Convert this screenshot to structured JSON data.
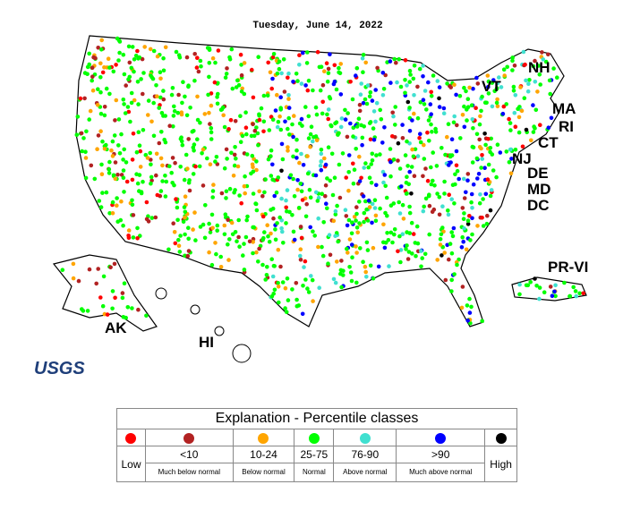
{
  "title": "Tuesday, June 14, 2022",
  "state_labels": [
    "NH",
    "VT",
    "MA",
    "RI",
    "CT",
    "NJ",
    "DE",
    "MD",
    "DC",
    "PR-VI",
    "AK",
    "HI"
  ],
  "logo": "USGS",
  "legend": {
    "title": "Explanation - Percentile classes",
    "classes": [
      {
        "label": "Low",
        "color": "#ff0000"
      },
      {
        "label": "<10",
        "sublabel": "Much below normal",
        "color": "#b22222"
      },
      {
        "label": "10-24",
        "sublabel": "Below normal",
        "color": "#ffa500"
      },
      {
        "label": "25-75",
        "sublabel": "Normal",
        "color": "#00ff00"
      },
      {
        "label": "76-90",
        "sublabel": "Above normal",
        "color": "#40e0d0"
      },
      {
        "label": ">90",
        "sublabel": "Much above normal",
        "color": "#0000ff"
      },
      {
        "label": "High",
        "color": "#000000"
      }
    ]
  }
}
